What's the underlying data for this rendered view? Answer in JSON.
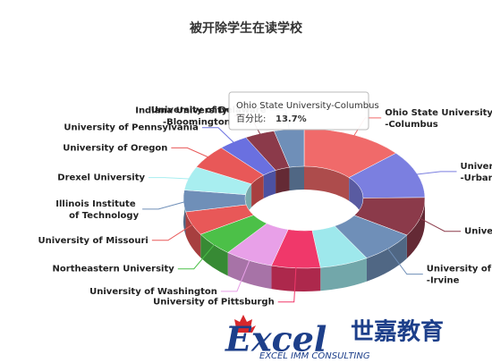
{
  "chart_data": {
    "type": "donut3d",
    "title": "被开除学生在读学校",
    "categories": [
      "Ohio State University -Columbus",
      "University of Illinois -Urbana-Champaign",
      "University of Arizona",
      "University of California -Irvine",
      null,
      "University of Pittsburgh",
      "University of Washington",
      "Northeastern University",
      "University of Missouri",
      "Illinois Institute of Technology",
      "Drexel University",
      "University of Oregon",
      "University of Pennsylvania",
      "Indiana University -Bloomington",
      "University of Delaware"
    ],
    "values": [
      13.7,
      11,
      9,
      7.5,
      6.5,
      6.5,
      6.5,
      5.5,
      5.5,
      5,
      5.5,
      5.5,
      4,
      4,
      4
    ],
    "colors": [
      "#f06a6a",
      "#7b7fe0",
      "#8b3a4a",
      "#6f8fb8",
      "#9ee8ec",
      "#f0386a",
      "#e8a0e8",
      "#4cc048",
      "#e85858",
      "#6f8fb8",
      "#a8eef0",
      "#e85858",
      "#6a70e0",
      "#8b3a4a",
      "#6f8fb8"
    ],
    "tooltip": {
      "title": "Ohio State University-Columbus",
      "label": "百分比:",
      "value": "13.7%"
    }
  },
  "watermark": {
    "brand": "Excel",
    "chinese": "世嘉教育",
    "sub": "EXCEL IMM CONSULTING"
  }
}
